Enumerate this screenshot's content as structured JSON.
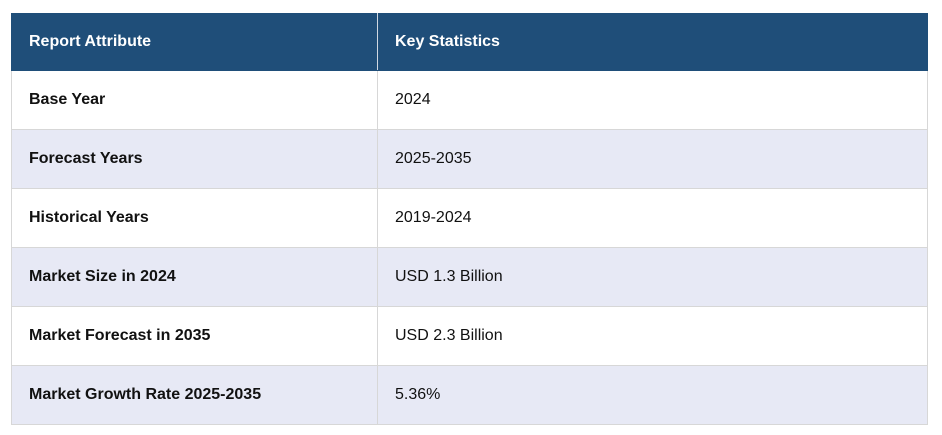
{
  "table": {
    "headers": [
      "Report Attribute",
      "Key Statistics"
    ],
    "rows": [
      {
        "attribute": "Base Year",
        "value": "2024"
      },
      {
        "attribute": "Forecast Years",
        "value": "2025-2035"
      },
      {
        "attribute": "Historical Years",
        "value": "2019-2024"
      },
      {
        "attribute": "Market Size in 2024",
        "value": "USD 1.3 Billion"
      },
      {
        "attribute": "Market Forecast in 2035",
        "value": "USD 2.3 Billion"
      },
      {
        "attribute": "Market Growth Rate 2025-2035",
        "value": "5.36%"
      }
    ]
  },
  "colors": {
    "header_bg": "#1f4e79",
    "header_text": "#ffffff",
    "row_alt_bg": "#e7e9f5",
    "row_bg": "#ffffff"
  }
}
